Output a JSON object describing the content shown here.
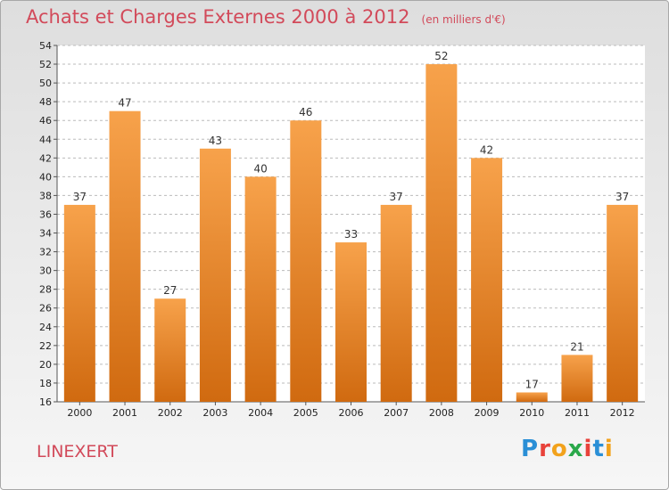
{
  "header": {
    "title": "Achats et Charges Externes 2000 à 2012",
    "subtitle": "(en milliers d'€)"
  },
  "footer": {
    "commune": "LINEXERT",
    "logo_text": "Proxiti"
  },
  "colors": {
    "bar_light": "#f7a24b",
    "bar_dark": "#d06a10",
    "title": "#d24a5a",
    "grid": "#bbbbbb"
  },
  "chart_data": {
    "type": "bar",
    "title": "Achats et Charges Externes 2000 à 2012",
    "subtitle": "(en milliers d'€)",
    "xlabel": "",
    "ylabel": "",
    "categories": [
      "2000",
      "2001",
      "2002",
      "2003",
      "2004",
      "2005",
      "2006",
      "2007",
      "2008",
      "2009",
      "2010",
      "2011",
      "2012"
    ],
    "values": [
      37,
      47,
      27,
      43,
      40,
      46,
      33,
      37,
      52,
      42,
      17,
      21,
      37
    ],
    "ylim": [
      16,
      54
    ],
    "yticks": [
      16,
      18,
      20,
      22,
      24,
      26,
      28,
      30,
      32,
      34,
      36,
      38,
      40,
      42,
      44,
      46,
      48,
      50,
      52,
      54
    ],
    "grid": "horizontal-dashed",
    "legend": "none"
  }
}
